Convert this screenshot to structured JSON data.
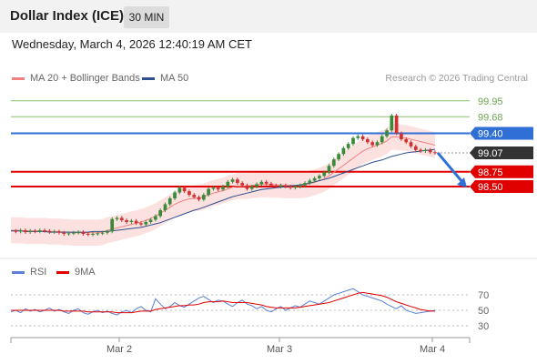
{
  "header": {
    "title": "Dollar Index (ICE)",
    "timeframe": "30 MIN",
    "timestamp": "Wednesday, March 4, 2026 12:40:19 AM CET"
  },
  "legend": {
    "ma20": {
      "label": "MA 20 + Bollinger Bands",
      "color": "#f08080"
    },
    "ma50": {
      "label": "MA 50",
      "color": "#2e4f8f"
    },
    "rsi": {
      "label": "RSI",
      "color": "#5b7fd6"
    },
    "rsi_ma": {
      "label": "9MA",
      "color": "#e00000"
    }
  },
  "credit": "Research © 2026 Trading Central",
  "chart_data": {
    "type": "line",
    "price_levels": [
      {
        "value": 99.95,
        "label": "99.95",
        "kind": "target",
        "color": "#8ac06a"
      },
      {
        "value": 99.68,
        "label": "99.68",
        "kind": "target",
        "color": "#8ac06a"
      },
      {
        "value": 99.4,
        "label": "99.40",
        "kind": "pivot",
        "color": "#2f6fd6"
      },
      {
        "value": 99.07,
        "label": "99.07",
        "kind": "last",
        "color": "#333333"
      },
      {
        "value": 98.75,
        "label": "98.75",
        "kind": "support",
        "color": "#e00000"
      },
      {
        "value": 98.5,
        "label": "98.50",
        "kind": "support",
        "color": "#e00000"
      }
    ],
    "x_ticks": [
      "Mar 2",
      "Mar 3",
      "Mar 4"
    ],
    "rsi_ticks": [
      70,
      50,
      30
    ],
    "price_series": [
      97.75,
      97.74,
      97.76,
      97.73,
      97.75,
      97.74,
      97.76,
      97.75,
      97.73,
      97.74,
      97.72,
      97.7,
      97.71,
      97.72,
      97.73,
      97.7,
      97.69,
      97.7,
      97.71,
      97.72,
      97.74,
      97.95,
      97.97,
      97.93,
      97.9,
      97.92,
      97.88,
      97.86,
      97.9,
      97.94,
      98.0,
      98.1,
      98.2,
      98.3,
      98.4,
      98.48,
      98.42,
      98.36,
      98.32,
      98.28,
      98.36,
      98.46,
      98.48,
      98.45,
      98.5,
      98.58,
      98.62,
      98.56,
      98.52,
      98.46,
      98.5,
      98.54,
      98.58,
      98.55,
      98.52,
      98.5,
      98.52,
      98.5,
      98.48,
      98.5,
      98.52,
      98.56,
      98.6,
      98.64,
      98.68,
      98.74,
      98.85,
      98.96,
      99.05,
      99.15,
      99.22,
      99.32,
      99.35,
      99.3,
      99.25,
      99.2,
      99.25,
      99.35,
      99.45,
      99.7,
      99.4,
      99.3,
      99.25,
      99.18,
      99.12,
      99.1,
      99.12,
      99.08,
      99.07
    ],
    "ma20_series": [
      97.76,
      97.76,
      97.76,
      97.75,
      97.75,
      97.75,
      97.75,
      97.75,
      97.74,
      97.74,
      97.74,
      97.73,
      97.73,
      97.72,
      97.72,
      97.72,
      97.72,
      97.72,
      97.72,
      97.73,
      97.76,
      97.78,
      97.8,
      97.82,
      97.84,
      97.86,
      97.88,
      97.9,
      97.93,
      97.96,
      98.0,
      98.05,
      98.1,
      98.15,
      98.2,
      98.24,
      98.27,
      98.29,
      98.3,
      98.31,
      98.33,
      98.36,
      98.39,
      98.41,
      98.43,
      98.46,
      98.49,
      98.51,
      98.51,
      98.51,
      98.52,
      98.53,
      98.54,
      98.54,
      98.53,
      98.53,
      98.53,
      98.52,
      98.52,
      98.52,
      98.52,
      98.53,
      98.55,
      98.57,
      98.6,
      98.63,
      98.68,
      98.74,
      98.8,
      98.86,
      98.92,
      98.98,
      99.04,
      99.1,
      99.14,
      99.17,
      99.2,
      99.23,
      99.27,
      99.34,
      99.34,
      99.33,
      99.32,
      99.3,
      99.28,
      99.26,
      99.24,
      99.22,
      99.2
    ],
    "ma50_series": [
      97.75,
      97.75,
      97.75,
      97.74,
      97.74,
      97.74,
      97.74,
      97.74,
      97.73,
      97.73,
      97.73,
      97.73,
      97.73,
      97.73,
      97.73,
      97.73,
      97.73,
      97.74,
      97.74,
      97.74,
      97.74,
      97.75,
      97.76,
      97.77,
      97.78,
      97.79,
      97.8,
      97.81,
      97.83,
      97.85,
      97.87,
      97.89,
      97.92,
      97.95,
      97.98,
      98.01,
      98.04,
      98.07,
      98.1,
      98.12,
      98.15,
      98.18,
      98.21,
      98.24,
      98.27,
      98.3,
      98.33,
      98.35,
      98.37,
      98.39,
      98.41,
      98.43,
      98.45,
      98.46,
      98.47,
      98.48,
      98.49,
      98.5,
      98.51,
      98.52,
      98.53,
      98.54,
      98.56,
      98.58,
      98.6,
      98.62,
      98.64,
      98.67,
      98.7,
      98.73,
      98.76,
      98.79,
      98.82,
      98.85,
      98.88,
      98.91,
      98.93,
      98.95,
      98.98,
      99.01,
      99.03,
      99.05,
      99.07,
      99.08,
      99.09,
      99.1,
      99.11,
      99.12,
      99.13
    ],
    "bb_width": 0.22,
    "forecast": {
      "from": 99.07,
      "to": 98.5
    },
    "rsi_series": [
      48,
      50,
      47,
      52,
      49,
      51,
      48,
      50,
      53,
      49,
      51,
      48,
      46,
      50,
      52,
      47,
      45,
      48,
      50,
      47,
      49,
      46,
      44,
      48,
      50,
      47,
      52,
      55,
      50,
      48,
      65,
      58,
      52,
      55,
      60,
      56,
      54,
      58,
      62,
      66,
      68,
      64,
      60,
      63,
      62,
      58,
      55,
      60,
      63,
      58,
      56,
      52,
      55,
      50,
      48,
      52,
      55,
      50,
      53,
      56,
      54,
      58,
      62,
      60,
      58,
      62,
      66,
      70,
      72,
      74,
      76,
      78,
      74,
      70,
      68,
      66,
      64,
      62,
      58,
      55,
      52,
      56,
      50,
      48,
      46,
      47,
      48,
      49,
      50
    ],
    "rsi_ma_series": [
      50,
      50,
      50,
      50,
      50,
      50,
      50,
      50,
      50,
      50,
      50,
      49,
      49,
      49,
      49,
      49,
      48,
      48,
      48,
      48,
      48,
      48,
      47,
      47,
      47,
      47,
      48,
      49,
      49,
      49,
      51,
      52,
      53,
      54,
      55,
      56,
      56,
      57,
      57,
      58,
      60,
      61,
      61,
      61,
      62,
      61,
      60,
      60,
      60,
      60,
      59,
      58,
      57,
      55,
      54,
      53,
      53,
      53,
      53,
      53,
      54,
      55,
      56,
      57,
      58,
      59,
      60,
      62,
      64,
      66,
      68,
      70,
      72,
      73,
      72,
      71,
      70,
      69,
      67,
      64,
      61,
      59,
      57,
      55,
      53,
      51,
      50,
      49,
      49
    ]
  }
}
